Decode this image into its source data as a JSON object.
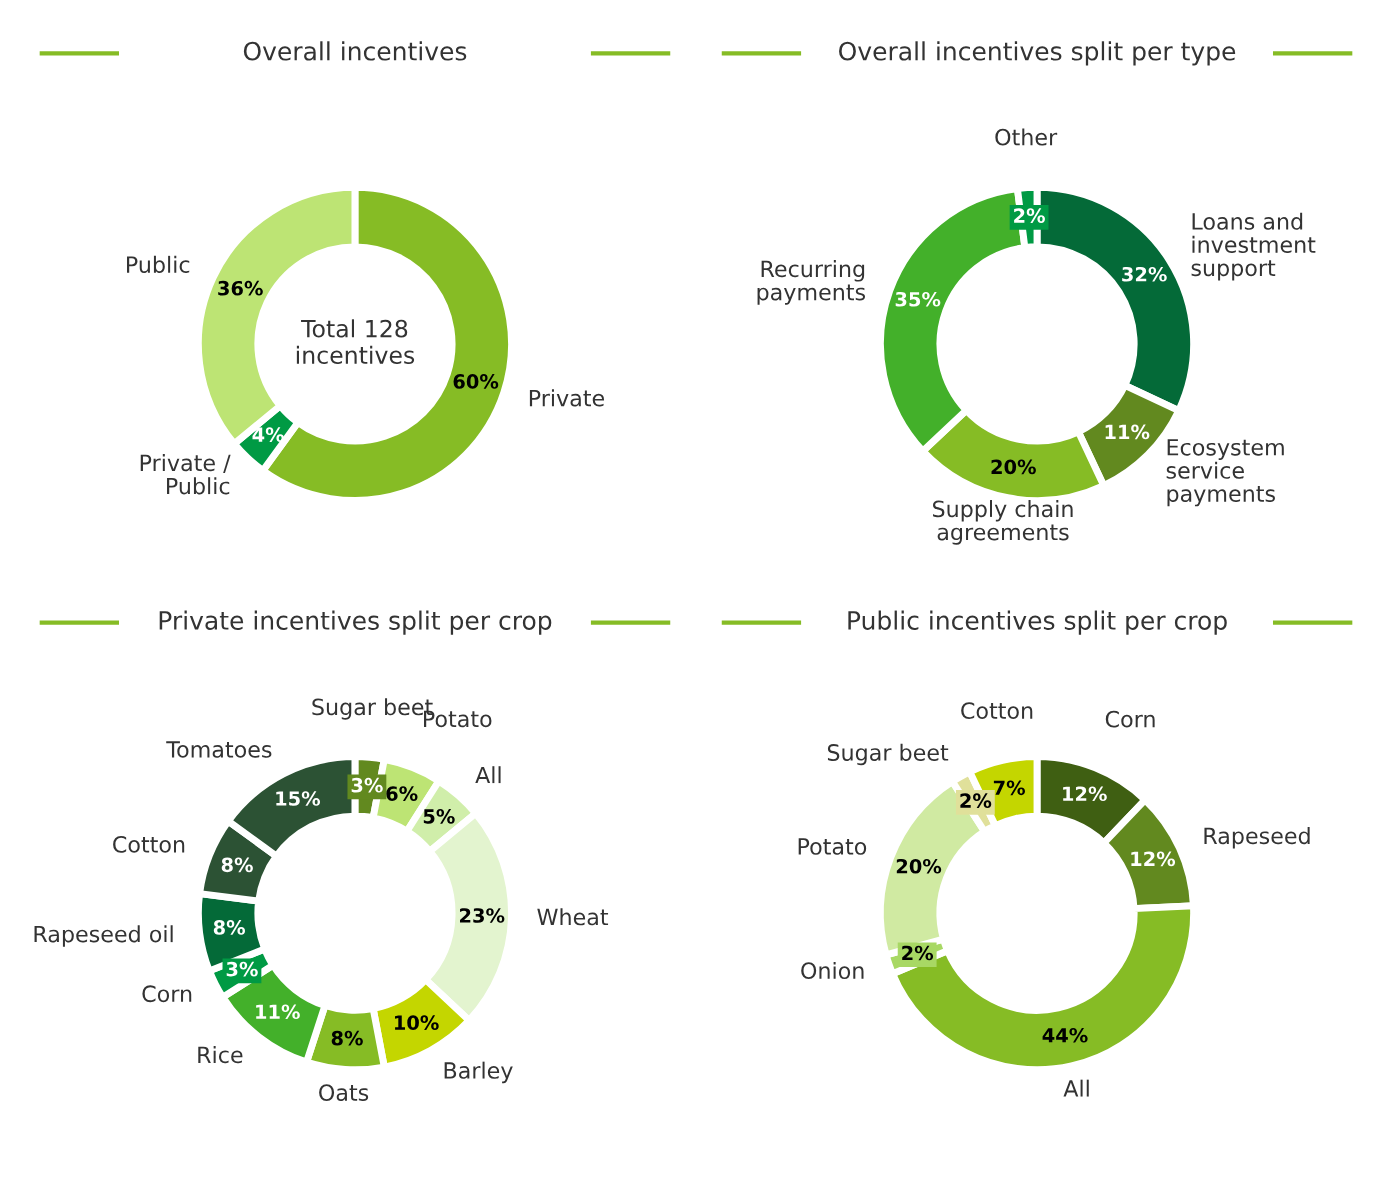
{
  "chart_data": [
    {
      "type": "donut",
      "title": "Overall incentives",
      "categories": [
        "Private",
        "Private / Public",
        "Public"
      ],
      "values": [
        60,
        4,
        36
      ],
      "colors": [
        "#86bc25",
        "#009a44",
        "#bde474"
      ],
      "value_labels": [
        "60%",
        "4%",
        "36%"
      ],
      "annotations": [
        "Total 128 incentives"
      ]
    },
    {
      "type": "donut",
      "title": "Overall incentives split per type",
      "categories": [
        "Loans and investment support",
        "Ecosystem service payments",
        "Supply chain agreements",
        "Recurring payments",
        "Other"
      ],
      "values": [
        32,
        11,
        20,
        35,
        2
      ],
      "colors": [
        "#046a38",
        "#62891f",
        "#86bc25",
        "#43b02a",
        "#009a44"
      ],
      "value_labels": [
        "32%",
        "11%",
        "20%",
        "35%",
        "2%"
      ]
    },
    {
      "type": "donut",
      "title": "Private incentives split per crop",
      "categories": [
        "Sugar beet",
        "Potato",
        "All",
        "Wheat",
        "Barley",
        "Oats",
        "Rice",
        "Corn",
        "Rapeseed oil",
        "Cotton",
        "Tomatoes"
      ],
      "values": [
        3,
        6,
        5,
        23,
        10,
        8,
        11,
        3,
        8,
        8,
        15
      ],
      "colors": [
        "#62891f",
        "#bde474",
        "#d0eeaa",
        "#e3f4cf",
        "#c4d600",
        "#86bc25",
        "#43b02a",
        "#009a44",
        "#046a38",
        "#2c5234",
        "#2c5234"
      ],
      "value_labels": [
        "3%",
        "6%",
        "5%",
        "23%",
        "10%",
        "8%",
        "11%",
        "3%",
        "8%",
        "8%",
        "15%"
      ]
    },
    {
      "type": "donut",
      "title": "Public incentives split per crop",
      "categories": [
        "Corn",
        "Rapeseed",
        "All",
        "Onion",
        "Potato",
        "Sugar beet",
        "Cotton"
      ],
      "values": [
        12,
        12,
        44,
        2,
        20,
        2,
        7
      ],
      "colors": [
        "#3f5f12",
        "#62891f",
        "#86bc25",
        "#a8d864",
        "#d0eaa2",
        "#e0e09a",
        "#c4d600"
      ],
      "value_labels": [
        "12%",
        "12%",
        "44%",
        "2%",
        "20%",
        "2%",
        "7%"
      ]
    }
  ]
}
